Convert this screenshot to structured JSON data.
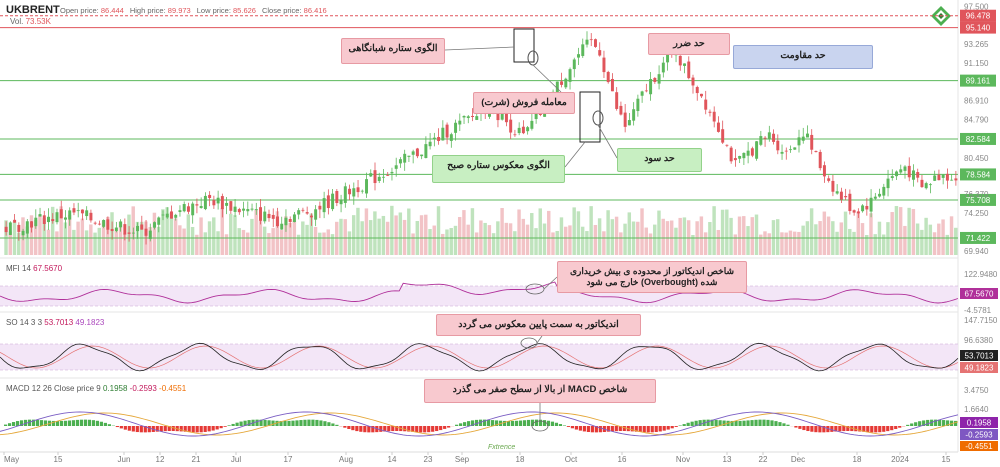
{
  "header": {
    "ticker": "UKBRENT",
    "open_label": "Open price:",
    "open": "86.444",
    "high_label": "High price:",
    "high": "89.973",
    "low_label": "Low price:",
    "low": "85.626",
    "close_label": "Close price:",
    "close": "86.416",
    "vol_label": "Vol.",
    "vol": "73.53K"
  },
  "indicators": {
    "mfi": {
      "name": "MFI 14",
      "value": "67.5670"
    },
    "so": {
      "name": "SO 14 3 3",
      "v1": "53.7013",
      "v2": "49.1823"
    },
    "macd": {
      "name": "MACD 12 26 Close price 9",
      "v1": "0.1958",
      "v2": "-0.2593",
      "v3": "-0.4551"
    }
  },
  "annotations": {
    "evening_star": "الگوی ستاره شبانگاهی",
    "sell_trade": "معامله فروش (شرت)",
    "morning_star": "الگوی معکوس ستاره صبح",
    "take_profit": "حد سود",
    "stop_loss": "حد ضرر",
    "resistance": "حد مقاومت",
    "mfi_note": "شاخص اندیکاتور از محدوده ی بیش خریداری شده (Overbought) خارج می شود",
    "so_note": "اندیکاتور به سمت پایین معکوس می گردد",
    "macd_note": "شاخص MACD از بالا از سطح صفر می گذرد"
  },
  "watermark": "Fxtrence",
  "colors": {
    "up": "#5cb85c",
    "down": "#e0555b",
    "level_line": "#7cc07c",
    "red_level": "#e0555b",
    "band": "#f3e6f7",
    "mfi": "#b0309a",
    "macd_line": "#7b5ec4",
    "signal": "#e5a83b"
  },
  "chart_data": {
    "type": "candlestick",
    "symbol": "UKBRENT",
    "x_ticks": [
      "May",
      "15",
      "Jun",
      "12",
      "21",
      "Jul",
      "17",
      "Aug",
      "14",
      "23",
      "Sep",
      "18",
      "Oct",
      "16",
      "Nov",
      "13",
      "22",
      "Dec",
      "18",
      "2024",
      "15"
    ],
    "price_axis_labels": [
      "97.500",
      "93.265",
      "91.150",
      "86.910",
      "84.790",
      "80.450",
      "76.370",
      "74.250",
      "69.940"
    ],
    "ylim": [
      69.5,
      97.8
    ],
    "highlighted_levels": [
      {
        "value": 96.478,
        "color": "#e0555b",
        "role": "red"
      },
      {
        "value": 95.14,
        "color": "#e0555b",
        "role": "resistance"
      },
      {
        "value": 89.161,
        "color": "#5cb85c",
        "role": "level"
      },
      {
        "value": 82.584,
        "color": "#5cb85c",
        "role": "take_profit"
      },
      {
        "value": 78.584,
        "color": "#5cb85c",
        "role": "last"
      },
      {
        "value": 75.708,
        "color": "#5cb85c",
        "role": "level"
      },
      {
        "value": 71.422,
        "color": "#5cb85c",
        "role": "level"
      }
    ],
    "close_path": [
      [
        0,
        72.5
      ],
      [
        8,
        73.5
      ],
      [
        16,
        74.2
      ],
      [
        24,
        73.0
      ],
      [
        32,
        72.0
      ],
      [
        40,
        74.5
      ],
      [
        48,
        75.8
      ],
      [
        56,
        74.5
      ],
      [
        64,
        73.5
      ],
      [
        72,
        74.5
      ],
      [
        80,
        76.5
      ],
      [
        86,
        78.0
      ],
      [
        92,
        79.5
      ],
      [
        100,
        82.0
      ],
      [
        104,
        83.5
      ],
      [
        110,
        85.0
      ],
      [
        114,
        86.5
      ],
      [
        118,
        84.5
      ],
      [
        122,
        82.8
      ],
      [
        126,
        85.5
      ],
      [
        130,
        88.5
      ],
      [
        134,
        91.5
      ],
      [
        138,
        93.5
      ],
      [
        140,
        92.5
      ],
      [
        142,
        89.0
      ],
      [
        144,
        86.0
      ],
      [
        146,
        84.0
      ],
      [
        148,
        85.5
      ],
      [
        150,
        87.5
      ],
      [
        154,
        90.5
      ],
      [
        158,
        92.5
      ],
      [
        160,
        90.5
      ],
      [
        164,
        87.5
      ],
      [
        168,
        84.0
      ],
      [
        172,
        79.5
      ],
      [
        176,
        81.5
      ],
      [
        180,
        83.0
      ],
      [
        184,
        81.0
      ],
      [
        188,
        83.5
      ],
      [
        192,
        79.5
      ],
      [
        196,
        76.5
      ],
      [
        200,
        74.5
      ],
      [
        204,
        75.5
      ],
      [
        208,
        78.0
      ],
      [
        212,
        79.5
      ],
      [
        216,
        77.0
      ],
      [
        220,
        78.5
      ],
      [
        224,
        78.5
      ]
    ],
    "indicators": {
      "mfi": {
        "last": 67.567,
        "labels": [
          "122.9480",
          "67.5670",
          "-4.5781"
        ]
      },
      "stochastic": {
        "k": 53.7013,
        "d": 49.1823,
        "labels": [
          "147.7150",
          "96.6380",
          "53.7013",
          "49.1823"
        ]
      },
      "macd": {
        "macd": 0.1958,
        "signal": -0.2593,
        "histogram": -0.4551,
        "labels": [
          "3.4750",
          "1.6640",
          "-1.8640",
          "0.1958",
          "-0.2593",
          "-0.4551"
        ]
      }
    }
  }
}
